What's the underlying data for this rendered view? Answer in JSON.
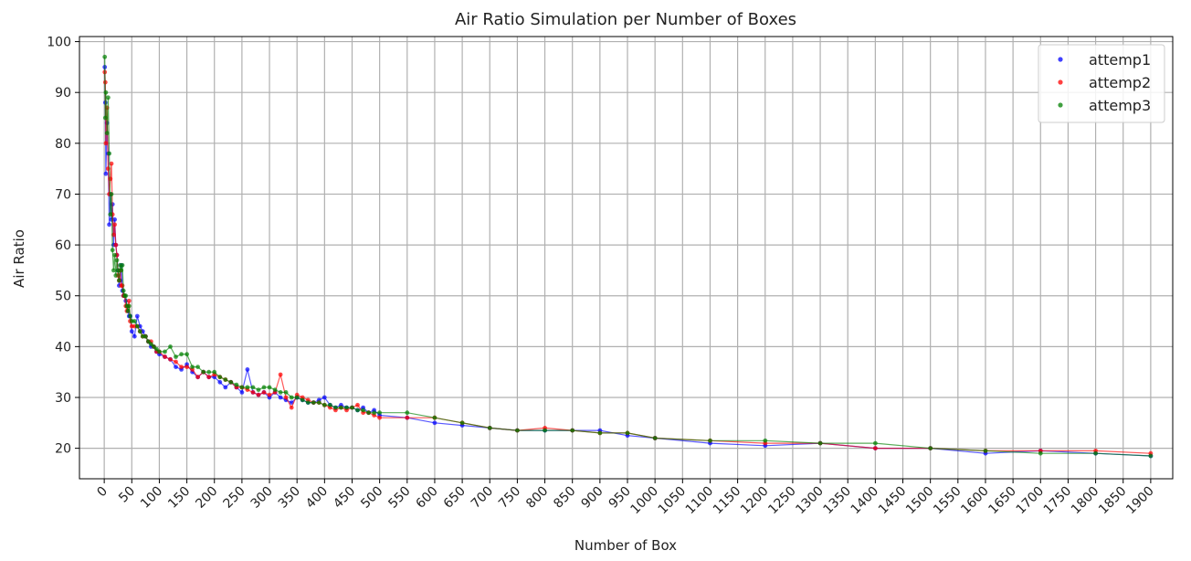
{
  "chart_data": {
    "type": "scatter",
    "title": "Air Ratio Simulation per Number of Boxes",
    "xlabel": "Number of Box",
    "ylabel": "Air Ratio",
    "xlim": [
      -45,
      1940
    ],
    "ylim": [
      14,
      101
    ],
    "xticks": [
      0,
      50,
      100,
      150,
      200,
      250,
      300,
      350,
      400,
      450,
      500,
      550,
      600,
      650,
      700,
      750,
      800,
      850,
      900,
      950,
      1000,
      1050,
      1100,
      1150,
      1200,
      1250,
      1300,
      1350,
      1400,
      1450,
      1500,
      1550,
      1600,
      1650,
      1700,
      1750,
      1800,
      1850,
      1900
    ],
    "yticks": [
      20,
      30,
      40,
      50,
      60,
      70,
      80,
      90,
      100
    ],
    "grid": true,
    "legend_position": "top-right",
    "series": [
      {
        "name": "attemp1",
        "color": "#0000ff",
        "x": [
          1,
          2,
          3,
          5,
          7,
          9,
          11,
          13,
          15,
          17,
          19,
          21,
          23,
          25,
          27,
          29,
          31,
          33,
          35,
          37,
          39,
          41,
          43,
          45,
          47,
          50,
          55,
          60,
          65,
          70,
          75,
          80,
          85,
          90,
          95,
          100,
          110,
          120,
          130,
          140,
          150,
          160,
          170,
          180,
          190,
          200,
          210,
          220,
          230,
          240,
          250,
          260,
          270,
          280,
          290,
          300,
          310,
          320,
          330,
          340,
          350,
          360,
          370,
          380,
          390,
          400,
          410,
          420,
          430,
          440,
          450,
          460,
          470,
          480,
          490,
          500,
          550,
          600,
          650,
          700,
          750,
          800,
          850,
          900,
          950,
          1000,
          1100,
          1200,
          1300,
          1400,
          1500,
          1600,
          1700,
          1800,
          1900
        ],
        "y": [
          95,
          88,
          74,
          84,
          78,
          64,
          70,
          65,
          68,
          60,
          65,
          60,
          58,
          55,
          52,
          53,
          56,
          51,
          50,
          50,
          49,
          48,
          47,
          46,
          46,
          43,
          42,
          46,
          44,
          43,
          42,
          41,
          40,
          40,
          39,
          38.5,
          38,
          37.5,
          36,
          35.5,
          36.5,
          35,
          34,
          35,
          34,
          34,
          33,
          32,
          33,
          32,
          31,
          35.5,
          31,
          30.5,
          31,
          30,
          31,
          30,
          29.5,
          29,
          30,
          29.5,
          29,
          29,
          29.5,
          30,
          28.5,
          28,
          28.5,
          28,
          28,
          27.5,
          28,
          27,
          27.5,
          26.5,
          26,
          25,
          24.5,
          24,
          23.5,
          23.5,
          23.5,
          23.5,
          22.5,
          22,
          21,
          20.5,
          21,
          20,
          20,
          19,
          19.5,
          19,
          18.5
        ]
      },
      {
        "name": "attemp2",
        "color": "#ff0000",
        "x": [
          1,
          2,
          3,
          5,
          7,
          9,
          11,
          13,
          15,
          17,
          19,
          21,
          23,
          25,
          27,
          29,
          31,
          33,
          35,
          37,
          39,
          41,
          43,
          45,
          47,
          50,
          55,
          60,
          65,
          70,
          75,
          80,
          85,
          90,
          95,
          100,
          110,
          120,
          130,
          140,
          150,
          160,
          170,
          180,
          190,
          200,
          210,
          220,
          230,
          240,
          250,
          260,
          270,
          280,
          290,
          300,
          310,
          320,
          330,
          340,
          350,
          360,
          370,
          380,
          390,
          400,
          410,
          420,
          430,
          440,
          450,
          460,
          470,
          480,
          490,
          500,
          550,
          600,
          650,
          700,
          750,
          800,
          850,
          900,
          950,
          1000,
          1100,
          1200,
          1300,
          1400,
          1500,
          1600,
          1700,
          1800,
          1900
        ],
        "y": [
          94,
          92,
          80,
          87,
          75,
          70,
          73,
          76,
          66,
          62,
          64,
          60,
          58,
          54,
          53,
          55,
          52,
          52,
          50,
          50,
          48,
          47,
          48,
          49,
          45,
          44,
          44,
          44,
          43,
          42,
          42,
          41,
          41,
          40,
          39,
          39,
          38,
          37.5,
          37,
          36,
          36,
          35.5,
          34,
          35,
          34,
          34.5,
          34,
          33.5,
          33,
          32,
          32,
          31.5,
          31,
          30.5,
          31,
          30.5,
          31,
          34.5,
          30,
          28,
          30.5,
          30,
          29.5,
          29,
          29,
          28.5,
          28,
          27.5,
          28,
          27.5,
          28,
          28.5,
          27,
          27,
          26.5,
          26,
          26,
          26,
          25,
          24,
          23.5,
          24,
          23.5,
          23,
          23,
          22,
          21.5,
          21,
          21,
          20,
          20,
          19.5,
          19.5,
          19.5,
          19
        ]
      },
      {
        "name": "attemp3",
        "color": "#008000",
        "x": [
          1,
          2,
          3,
          5,
          7,
          9,
          11,
          13,
          15,
          17,
          19,
          21,
          23,
          25,
          27,
          29,
          31,
          33,
          35,
          37,
          39,
          41,
          43,
          45,
          47,
          50,
          55,
          60,
          65,
          70,
          75,
          80,
          85,
          90,
          95,
          100,
          110,
          120,
          130,
          140,
          150,
          160,
          170,
          180,
          190,
          200,
          210,
          220,
          230,
          240,
          250,
          260,
          270,
          280,
          290,
          300,
          310,
          320,
          330,
          340,
          350,
          360,
          370,
          380,
          390,
          400,
          410,
          420,
          430,
          440,
          450,
          460,
          470,
          480,
          490,
          500,
          550,
          600,
          650,
          700,
          750,
          800,
          850,
          900,
          950,
          1000,
          1100,
          1200,
          1300,
          1400,
          1500,
          1600,
          1700,
          1800,
          1900
        ],
        "y": [
          97,
          85,
          90,
          82,
          89,
          78,
          66,
          70,
          59,
          55,
          58,
          54,
          57,
          55,
          53,
          56,
          55,
          56,
          51,
          50,
          50,
          48,
          47,
          48,
          46,
          45,
          45,
          44,
          43,
          42,
          42,
          41,
          40.5,
          40,
          39.5,
          39,
          39,
          40,
          38,
          38.5,
          38.5,
          36,
          36,
          35,
          35,
          35,
          34,
          33.5,
          33,
          32.5,
          32,
          32,
          32,
          31.5,
          32,
          32,
          31.5,
          31,
          31,
          30,
          30,
          29.5,
          29,
          29,
          29,
          28.5,
          28.5,
          28,
          28,
          28,
          28,
          27.5,
          27.5,
          27,
          27,
          27,
          27,
          26,
          25,
          24,
          23.5,
          23.5,
          23.5,
          23,
          23,
          22,
          21.5,
          21.5,
          21,
          21,
          20,
          19.5,
          19,
          19,
          18.5
        ]
      }
    ]
  }
}
